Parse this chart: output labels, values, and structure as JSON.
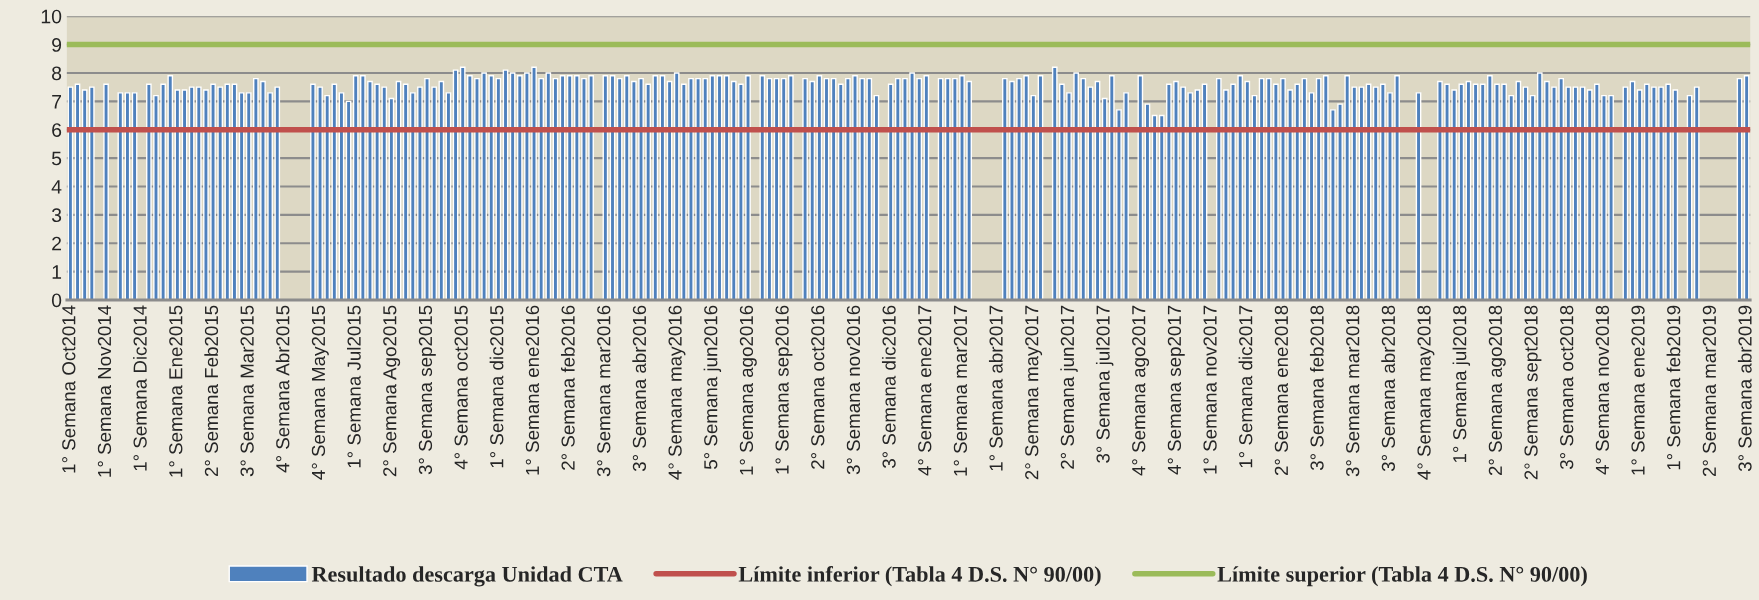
{
  "chart_data": {
    "type": "bar",
    "categories": [
      "1° Semana Oct2014",
      null,
      null,
      null,
      null,
      "1° Semana Nov2014",
      null,
      null,
      null,
      null,
      "1° Semana Dic2014",
      null,
      null,
      null,
      null,
      "1° Semana Ene2015",
      null,
      null,
      null,
      null,
      "2° Semana Feb2015",
      null,
      null,
      null,
      null,
      "3° Semana Mar2015",
      null,
      null,
      null,
      null,
      "4° Semana Abr2015",
      null,
      null,
      null,
      null,
      "4° Semana May2015",
      null,
      null,
      null,
      null,
      "1° Semana Jul2015",
      null,
      null,
      null,
      null,
      "2° Semana Ago2015",
      null,
      null,
      null,
      null,
      "3° Semana sep2015",
      null,
      null,
      null,
      null,
      "4° Semana oct2015",
      null,
      null,
      null,
      null,
      "1° Semana dic2015",
      null,
      null,
      null,
      null,
      "1° Semana ene2016",
      null,
      null,
      null,
      null,
      "2° Semana feb2016",
      null,
      null,
      null,
      null,
      "3° Semana mar2016",
      null,
      null,
      null,
      null,
      "3° Semana abr2016",
      null,
      null,
      null,
      null,
      "4° Semana may2016",
      null,
      null,
      null,
      null,
      "5° Semana jun2016",
      null,
      null,
      null,
      null,
      "1° Semana ago2016",
      null,
      null,
      null,
      null,
      "1° Semana sep2016",
      null,
      null,
      null,
      null,
      "2° Semana oct2016",
      null,
      null,
      null,
      null,
      "3° Semana nov2016",
      null,
      null,
      null,
      null,
      "3° Semana dic2016",
      null,
      null,
      null,
      null,
      "4° Semana ene2017",
      null,
      null,
      null,
      null,
      "1° Semana mar2017",
      null,
      null,
      null,
      null,
      "1° Semana abr2017",
      null,
      null,
      null,
      null,
      "2° Semana may2017",
      null,
      null,
      null,
      null,
      "2° Semana jun2017",
      null,
      null,
      null,
      null,
      "3° Semana jul2017",
      null,
      null,
      null,
      null,
      "4° Semana ago2017",
      null,
      null,
      null,
      null,
      "4° Semana sep2017",
      null,
      null,
      null,
      null,
      "1° Semana nov2017",
      null,
      null,
      null,
      null,
      "1° Semana dic2017",
      null,
      null,
      null,
      null,
      "2° Semana ene2018",
      null,
      null,
      null,
      null,
      "3° Semana feb2018",
      null,
      null,
      null,
      null,
      "3° Semana mar2018",
      null,
      null,
      null,
      null,
      "3° Semana abr2018",
      null,
      null,
      null,
      null,
      "4° Semana may2018",
      null,
      null,
      null,
      null,
      "1° Semana jul2018",
      null,
      null,
      null,
      null,
      "2° Semana ago2018",
      null,
      null,
      null,
      null,
      "2° Semana sept2018",
      null,
      null,
      null,
      null,
      "3° Semana oct2018",
      null,
      null,
      null,
      null,
      "4° Semana nov2018",
      null,
      null,
      null,
      null,
      "1° Semana ene2019",
      null,
      null,
      null,
      null,
      "1° Semana feb2019",
      null,
      null,
      null,
      null,
      "2° Semana mar2019",
      null,
      null,
      null,
      null,
      "3° Semana abr2019"
    ],
    "series": [
      {
        "name": "Resultado descarga Unidad CTA",
        "color": "#4f81bd",
        "values": [
          7.5,
          7.6,
          7.4,
          7.5,
          null,
          7.6,
          null,
          7.3,
          7.3,
          7.3,
          null,
          7.6,
          7.2,
          7.6,
          7.9,
          7.4,
          7.4,
          7.5,
          7.5,
          7.4,
          7.6,
          7.5,
          7.6,
          7.6,
          7.3,
          7.3,
          7.8,
          7.7,
          7.3,
          7.5,
          null,
          null,
          null,
          null,
          7.6,
          7.5,
          7.2,
          7.6,
          7.3,
          7.0,
          7.9,
          7.9,
          7.7,
          7.6,
          7.5,
          7.1,
          7.7,
          7.6,
          7.3,
          7.5,
          7.8,
          7.5,
          7.7,
          7.3,
          8.1,
          8.2,
          7.9,
          7.8,
          8.0,
          7.9,
          7.8,
          8.1,
          8.0,
          7.9,
          8.0,
          8.2,
          7.8,
          8.0,
          7.8,
          7.9,
          7.9,
          7.9,
          7.8,
          7.9,
          null,
          7.9,
          7.9,
          7.8,
          7.9,
          7.7,
          7.8,
          7.6,
          7.9,
          7.9,
          7.7,
          8.0,
          7.6,
          7.8,
          7.8,
          7.8,
          7.9,
          7.9,
          7.9,
          7.7,
          7.6,
          7.9,
          null,
          7.9,
          7.8,
          7.8,
          7.8,
          7.9,
          null,
          7.8,
          7.7,
          7.9,
          7.8,
          7.8,
          7.6,
          7.8,
          7.9,
          7.8,
          7.8,
          7.2,
          null,
          7.6,
          7.8,
          7.8,
          8.0,
          7.8,
          7.9,
          null,
          7.8,
          7.8,
          7.8,
          7.9,
          7.7,
          null,
          null,
          null,
          null,
          7.8,
          7.7,
          7.8,
          7.9,
          7.2,
          7.9,
          null,
          8.2,
          7.6,
          7.3,
          8.0,
          7.8,
          7.5,
          7.7,
          7.1,
          7.9,
          6.7,
          7.3,
          null,
          7.9,
          6.9,
          6.5,
          6.5,
          7.6,
          7.7,
          7.5,
          7.3,
          7.4,
          7.6,
          null,
          7.8,
          7.4,
          7.6,
          7.9,
          7.7,
          7.2,
          7.8,
          7.8,
          7.6,
          7.8,
          7.4,
          7.6,
          7.8,
          7.3,
          7.8,
          7.9,
          6.7,
          6.9,
          7.9,
          7.5,
          7.5,
          7.6,
          7.5,
          7.6,
          7.3,
          7.9,
          null,
          null,
          7.3,
          null,
          null,
          7.7,
          7.6,
          7.4,
          7.6,
          7.7,
          7.6,
          7.6,
          7.9,
          7.6,
          7.6,
          7.2,
          7.7,
          7.5,
          7.2,
          8.0,
          7.7,
          7.5,
          7.8,
          7.5,
          7.5,
          7.5,
          7.4,
          7.6,
          7.2,
          7.2,
          null,
          7.5,
          7.7,
          7.4,
          7.6,
          7.5,
          7.5,
          7.6,
          7.4,
          null,
          7.2,
          7.5,
          null,
          null,
          null,
          null,
          null,
          7.8,
          7.9
        ]
      }
    ],
    "ref_lines": [
      {
        "axis": "y",
        "value": 6,
        "label": "Límite inferior (Tabla 4 D.S. N° 90/00)",
        "color": "#c0504d",
        "line_style": "solid"
      },
      {
        "axis": "y",
        "value": 9,
        "label": "Límite superior (Tabla 4 D.S. N° 90/00)",
        "color": "#9bbb59",
        "line_style": "solid"
      }
    ],
    "ylim": [
      0,
      10
    ],
    "yticks": [
      0,
      1,
      2,
      3,
      4,
      5,
      6,
      7,
      8,
      9,
      10
    ],
    "grid": "y",
    "legend": "bottom"
  }
}
